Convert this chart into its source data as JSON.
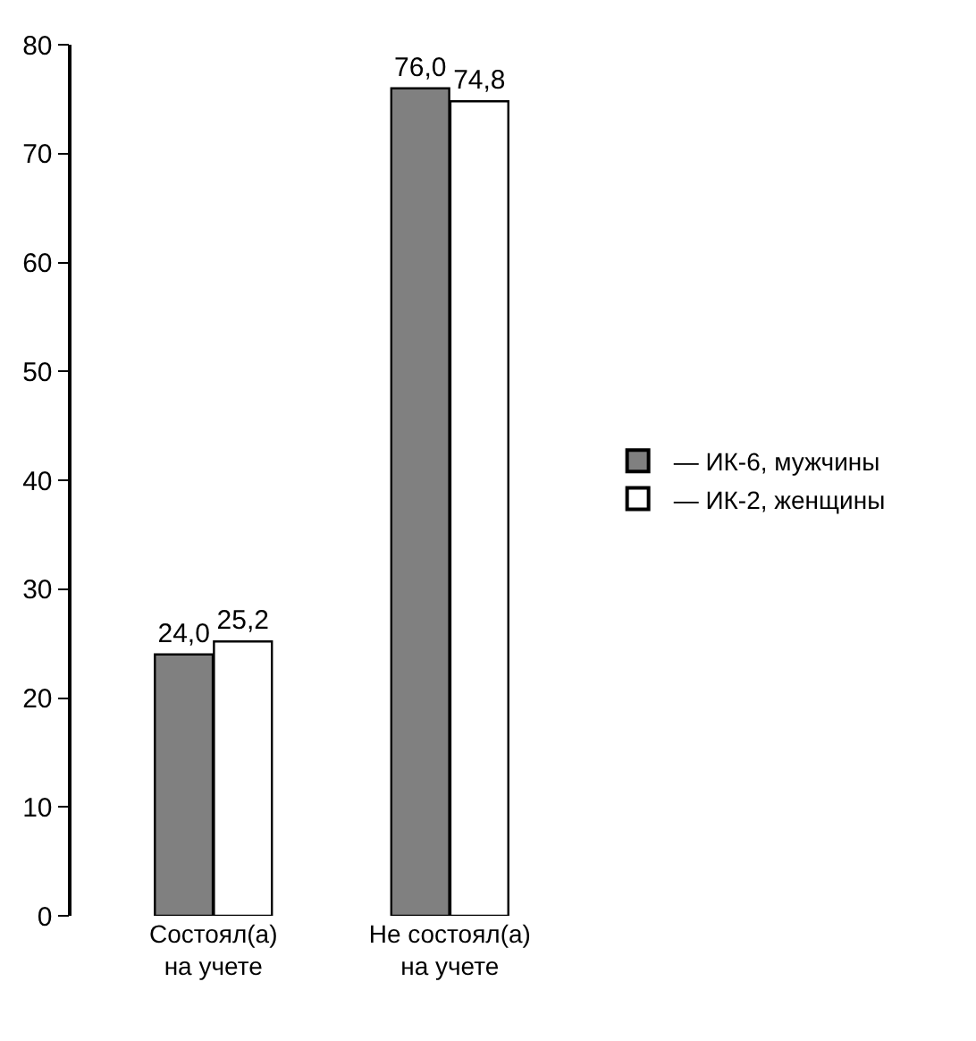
{
  "chart_data": {
    "type": "bar",
    "categories": [
      "Состоял(а)\nна учете",
      "Не состоял(а)\nна учете"
    ],
    "series": [
      {
        "name": "— ИК-6, мужчины",
        "color": "#808080",
        "values": [
          24.0,
          76.0
        ],
        "value_labels": [
          "24,0",
          "76,0"
        ]
      },
      {
        "name": "— ИК-2, женщины",
        "color": "#ffffff",
        "values": [
          25.2,
          74.8
        ],
        "value_labels": [
          "25,2",
          "74,8"
        ]
      }
    ],
    "ylim": [
      0,
      80
    ],
    "yticks": [
      0,
      10,
      20,
      30,
      40,
      50,
      60,
      70,
      80
    ],
    "legend": "right"
  }
}
